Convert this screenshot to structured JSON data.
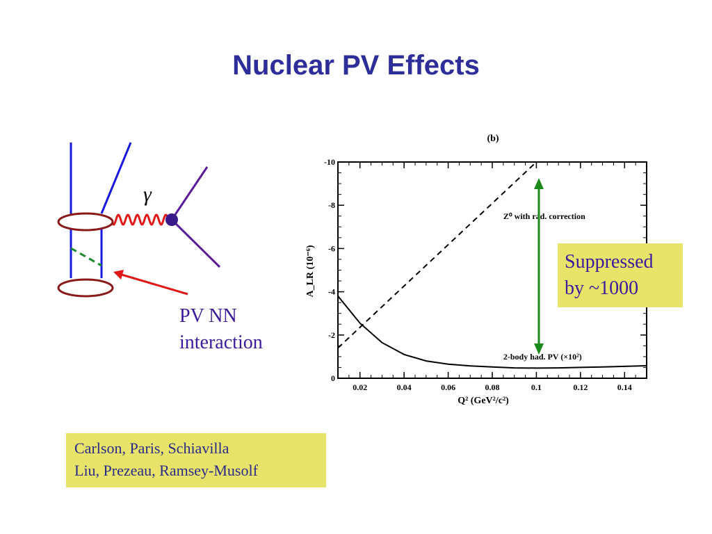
{
  "slide": {
    "title": "Nuclear PV Effects"
  },
  "diagram": {
    "gamma_symbol": "γ",
    "pv_label_line1": "PV NN",
    "pv_label_line2": "interaction",
    "colors": {
      "nucleon_line": "#1818e0",
      "lepton_line": "#5a1a9a",
      "photon": "#e01818",
      "vertex": "#3a1a8a",
      "exchange": "#1a8a2a",
      "blob": "#8a1a1a",
      "arrow": "#e01818"
    }
  },
  "callout": {
    "line1": "Suppressed",
    "line2": "by  ~1000",
    "arrow_color": "#1a8a1a"
  },
  "references": {
    "line1": "Carlson, Paris, Schiavilla",
    "line2": "Liu, Prezeau, Ramsey-Musolf"
  },
  "chart_data": {
    "type": "line",
    "panel_label": "(b)",
    "xlabel": "Q² (GeV²/c²)",
    "ylabel": "A_LR (10⁻⁶)",
    "xlim": [
      0.01,
      0.15
    ],
    "ylim": [
      0,
      -10
    ],
    "x_ticks": [
      "0.02",
      "0.04",
      "0.06",
      "0.08",
      "0.1",
      "0.12",
      "0.14"
    ],
    "x_tick_values": [
      0.02,
      0.04,
      0.06,
      0.08,
      0.1,
      0.12,
      0.14
    ],
    "y_ticks": [
      "0",
      "-2",
      "-4",
      "-6",
      "-8",
      "-10"
    ],
    "y_tick_values": [
      0,
      -2,
      -4,
      -6,
      -8,
      -10
    ],
    "series": [
      {
        "name": "Z⁰ with rad. correction",
        "style": "dashed",
        "x": [
          0.01,
          0.1
        ],
        "y": [
          -1.4,
          -10.0
        ]
      },
      {
        "name": "2-body had. PV (×10²)",
        "style": "solid",
        "x": [
          0.01,
          0.02,
          0.03,
          0.04,
          0.05,
          0.06,
          0.07,
          0.08,
          0.09,
          0.1,
          0.11,
          0.12,
          0.13,
          0.14,
          0.15
        ],
        "y": [
          -3.8,
          -2.55,
          -1.65,
          -1.1,
          -0.8,
          -0.65,
          -0.57,
          -0.52,
          -0.48,
          -0.47,
          -0.48,
          -0.5,
          -0.52,
          -0.55,
          -0.58
        ]
      }
    ],
    "annotations": [
      {
        "text": "Z⁰ with rad. correction",
        "x": 0.085,
        "y": -7.5
      },
      {
        "text": "2-body had. PV (×10²)",
        "x": 0.085,
        "y": -1.0
      }
    ],
    "grid": false,
    "legend": "none"
  }
}
